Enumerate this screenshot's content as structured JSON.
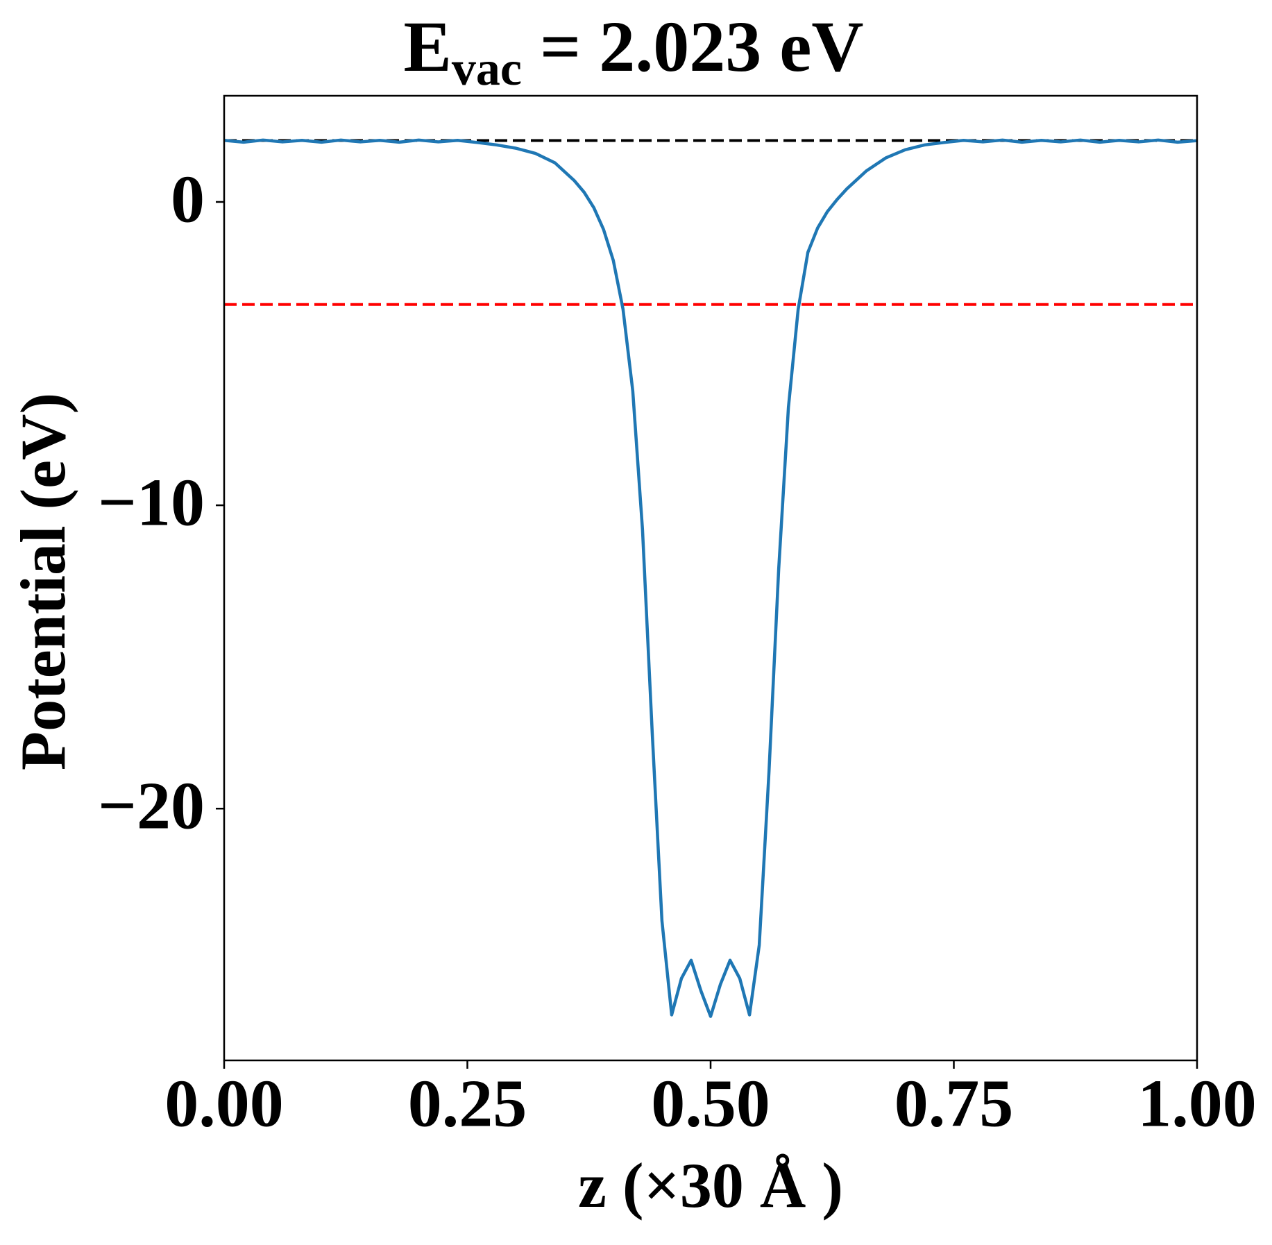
{
  "chart_data": {
    "type": "line",
    "title": {
      "main": "E",
      "subscript": "vac",
      "rest": " = 2.023 eV"
    },
    "x_label": "z (×30 Å )",
    "y_label": "Potential (eV)",
    "xlim": [
      0,
      1
    ],
    "ylim": [
      -28.3,
      3.5
    ],
    "xticks": [
      {
        "value": 0,
        "label": "0.00"
      },
      {
        "value": 0.25,
        "label": "0.25"
      },
      {
        "value": 0.5,
        "label": "0.50"
      },
      {
        "value": 0.75,
        "label": "0.75"
      },
      {
        "value": 1,
        "label": "1.00"
      }
    ],
    "yticks": [
      0,
      {
        "value": -10,
        "label": "−10"
      },
      {
        "value": -20,
        "label": "−20"
      }
    ],
    "grid": false,
    "hlines": [
      {
        "value": 2.023,
        "color": "#000000"
      },
      {
        "value": -3.38,
        "color": "#ff0000"
      }
    ],
    "x": [
      0,
      0.02,
      0.04,
      0.06,
      0.08,
      0.1,
      0.12,
      0.14,
      0.16,
      0.18,
      0.2,
      0.22,
      0.24,
      0.26,
      0.28,
      0.3,
      0.32,
      0.34,
      0.36,
      0.37,
      0.38,
      0.39,
      0.4,
      0.41,
      0.42,
      0.43,
      0.44,
      0.45,
      0.46,
      0.47,
      0.48,
      0.49,
      0.5,
      0.51,
      0.52,
      0.53,
      0.54,
      0.55,
      0.56,
      0.57,
      0.58,
      0.59,
      0.6,
      0.61,
      0.62,
      0.63,
      0.64,
      0.66,
      0.68,
      0.7,
      0.72,
      0.74,
      0.76,
      0.78,
      0.8,
      0.82,
      0.84,
      0.86,
      0.88,
      0.9,
      0.92,
      0.94,
      0.96,
      0.98,
      1
    ],
    "series": [
      {
        "color": "#1f77b4",
        "values": [
          2.03,
          1.97,
          2.04,
          1.98,
          2.03,
          1.97,
          2.04,
          1.98,
          2.03,
          1.97,
          2.04,
          1.98,
          2.03,
          1.96,
          1.88,
          1.77,
          1.6,
          1.29,
          0.7,
          0.32,
          -0.19,
          -0.91,
          -1.93,
          -3.54,
          -6.23,
          -10.8,
          -17.5,
          -23.7,
          -26.8,
          -25.6,
          -25.0,
          -26.0,
          -26.85,
          -25.8,
          -25.0,
          -25.6,
          -26.8,
          -24.5,
          -18.8,
          -12.1,
          -6.77,
          -3.54,
          -1.66,
          -0.86,
          -0.32,
          0.08,
          0.43,
          1.02,
          1.45,
          1.72,
          1.88,
          1.96,
          2.03,
          1.98,
          2.04,
          1.97,
          2.03,
          1.98,
          2.04,
          1.97,
          2.03,
          1.98,
          2.04,
          1.97,
          2.02
        ]
      }
    ]
  }
}
